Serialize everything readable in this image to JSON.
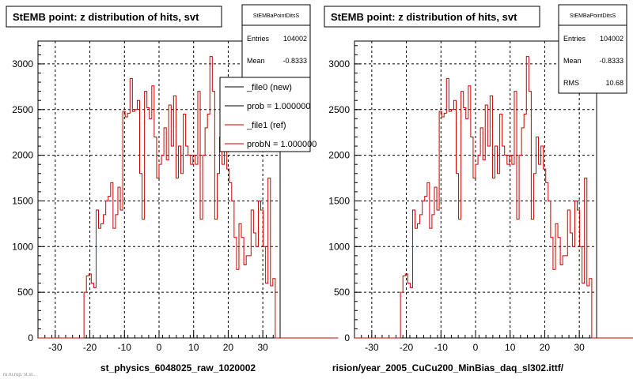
{
  "panels": [
    {
      "title": "StEMB point: z distribution of hits, svt",
      "xlabel": "st_physics_6048025_raw_1020002",
      "stats": {
        "name": "StEMBaPointDitsS",
        "rows": [
          {
            "label": "Entries",
            "value": "104002"
          },
          {
            "label": "Mean",
            "value": "-0.8333"
          }
        ]
      },
      "legend": [
        {
          "label": "_file0 (new)",
          "color": "#000000"
        },
        {
          "label": "prob = 1.000000",
          "color": "#000000"
        },
        {
          "label": "_file1 (ref)",
          "color": "#cc0000"
        },
        {
          "label": "probN = 1.000000",
          "color": "#cc0000"
        }
      ]
    },
    {
      "title": "StEMB point: z distribution of hits, svt",
      "xlabel": "rision/year_2005_CuCu200_MinBias_daq_sl302.ittf/",
      "stats": {
        "name": "StEMBaPointDitsS",
        "rows": [
          {
            "label": "Entries",
            "value": "104002"
          },
          {
            "label": "Mean",
            "value": "-0.8333"
          },
          {
            "label": "RMS",
            "value": "10.68"
          }
        ]
      },
      "legend": []
    }
  ],
  "footer_text": "ru.ru.rup. st.st...",
  "colors": {
    "hist": "#cc0000",
    "grid": "#000000",
    "frame": "#000000"
  },
  "chart_data": [
    {
      "type": "histogram",
      "title": "StEMB point: z distribution of hits, svt",
      "xlabel": "st_physics_6048025_raw_1020002",
      "ylabel": "",
      "xlim": [
        -35,
        35
      ],
      "ylim": [
        0,
        3250
      ],
      "xticks": [
        -30,
        -20,
        -10,
        0,
        10,
        20,
        30
      ],
      "yticks": [
        0,
        500,
        1000,
        1500,
        2000,
        2500,
        3000
      ],
      "grid": true,
      "legend_position": "top-right",
      "bin_edges_start": -35,
      "bin_width": 0.7,
      "values": [
        0,
        0,
        0,
        0,
        0,
        0,
        0,
        0,
        0,
        0,
        0,
        0,
        0,
        0,
        0,
        0,
        0,
        0,
        0,
        500,
        680,
        700,
        600,
        550,
        1400,
        1200,
        1250,
        1350,
        1500,
        1550,
        1700,
        1200,
        1350,
        1650,
        1400,
        2480,
        2420,
        2460,
        2840,
        2480,
        2500,
        2600,
        1800,
        1300,
        2700,
        2520,
        2400,
        2760,
        2200,
        1750,
        1900,
        2000,
        2300,
        1950,
        2550,
        2100,
        2650,
        1750,
        2100,
        1800,
        2450,
        2100,
        2000,
        1900,
        2000,
        1900,
        2700,
        1300,
        2000,
        2300,
        2450,
        3080,
        2700,
        1300,
        1800,
        2200,
        1900,
        2100,
        1850,
        1700,
        1500,
        1100,
        750,
        1250,
        1100,
        800,
        900,
        900,
        1400,
        1150,
        1000,
        1500,
        1400,
        1000,
        600,
        1750,
        570,
        650,
        0,
        0,
        0,
        0,
        0,
        0,
        0,
        0,
        0,
        0,
        0,
        0,
        0,
        0,
        0,
        0,
        0,
        0,
        0,
        0,
        0,
        0,
        0,
        0,
        0,
        0
      ]
    },
    {
      "type": "histogram",
      "title": "StEMB point: z distribution of hits, svt",
      "xlabel": "rision/year_2005_CuCu200_MinBias_daq_sl302.ittf/",
      "ylabel": "",
      "xlim": [
        -35,
        35
      ],
      "ylim": [
        0,
        3250
      ],
      "xticks": [
        -30,
        -20,
        -10,
        0,
        10,
        20,
        30
      ],
      "yticks": [
        0,
        500,
        1000,
        1500,
        2000,
        2500,
        3000
      ],
      "grid": true,
      "bin_edges_start": -35,
      "bin_width": 0.7,
      "values": [
        0,
        0,
        0,
        0,
        0,
        0,
        0,
        0,
        0,
        0,
        0,
        0,
        0,
        0,
        0,
        0,
        0,
        0,
        0,
        500,
        680,
        700,
        600,
        550,
        1400,
        1200,
        1250,
        1350,
        1500,
        1550,
        1700,
        1200,
        1350,
        1650,
        1400,
        2480,
        2420,
        2460,
        2840,
        2480,
        2500,
        2600,
        1800,
        1300,
        2700,
        2520,
        2400,
        2760,
        2200,
        1750,
        1900,
        2000,
        2300,
        1950,
        2550,
        2100,
        2650,
        1750,
        2100,
        1800,
        2450,
        2100,
        2000,
        1900,
        2000,
        1900,
        2700,
        1300,
        2000,
        2300,
        2450,
        3080,
        2700,
        1300,
        1800,
        2200,
        1900,
        2100,
        1850,
        1700,
        1500,
        1100,
        750,
        1250,
        1100,
        800,
        900,
        900,
        1400,
        1150,
        1000,
        1500,
        1400,
        1000,
        600,
        1750,
        570,
        650,
        0,
        0,
        0,
        0,
        0,
        0,
        0,
        0,
        0,
        0,
        0,
        0,
        0,
        0,
        0,
        0,
        0,
        0,
        0,
        0,
        0,
        0,
        0,
        0,
        0,
        0
      ]
    }
  ]
}
